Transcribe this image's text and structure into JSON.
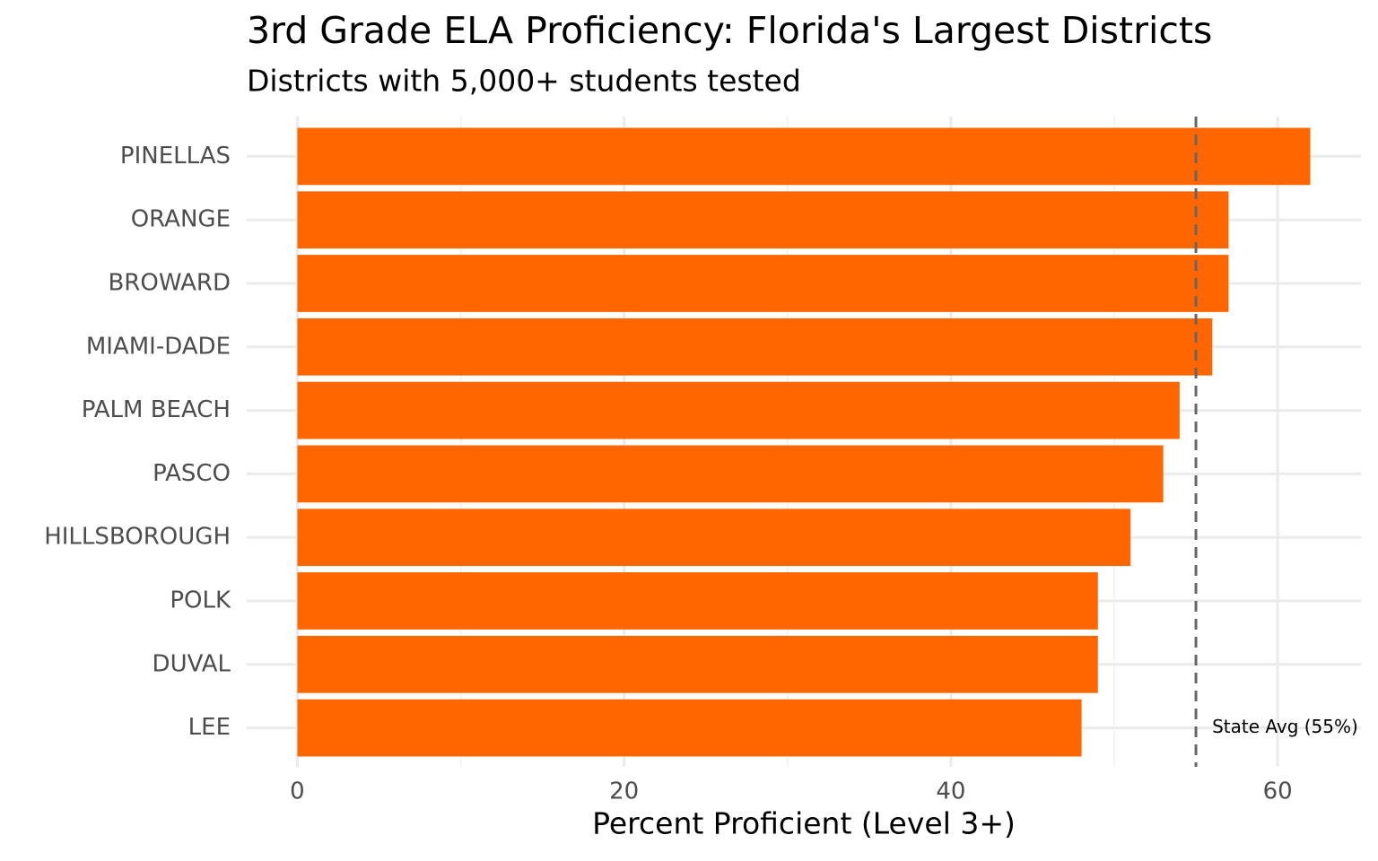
{
  "chart_data": {
    "type": "bar",
    "orientation": "horizontal",
    "title": "3rd Grade ELA Proficiency: Florida's Largest Districts",
    "subtitle": "Districts with 5,000+ students tested",
    "x_label": "Percent Proficient (Level 3+)",
    "categories": [
      "PINELLAS",
      "ORANGE",
      "BROWARD",
      "MIAMI-DADE",
      "PALM BEACH",
      "PASCO",
      "HILLSBOROUGH",
      "POLK",
      "DUVAL",
      "LEE"
    ],
    "values": [
      62,
      57,
      57,
      56,
      54,
      53,
      51,
      49,
      49,
      48
    ],
    "color": "#ff6600",
    "xlim": [
      -3.1,
      65.1
    ],
    "xticks": [
      0,
      20,
      40,
      60
    ],
    "xminor": [
      10,
      30,
      50
    ],
    "grid": true,
    "reference_line": {
      "value": 55,
      "label": "State Avg (55%)"
    }
  }
}
